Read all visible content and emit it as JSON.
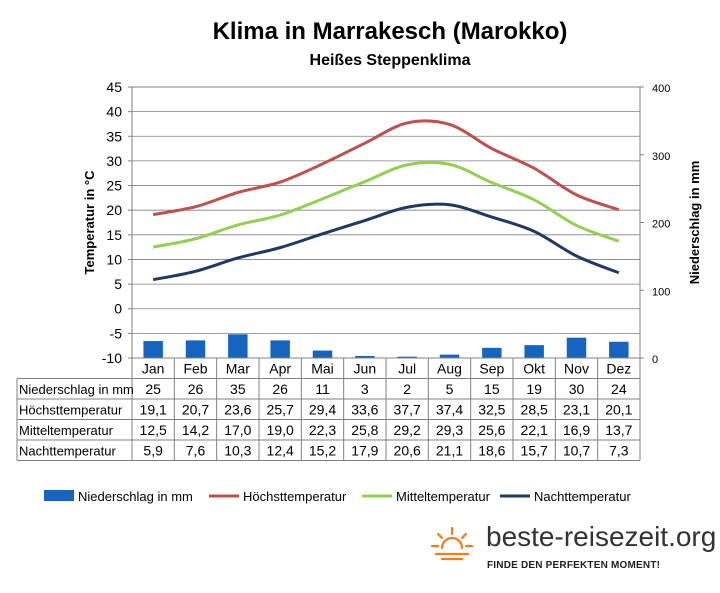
{
  "chart_data": {
    "type": "bar+line",
    "title": "Klima in Marrakesch (Marokko)",
    "subtitle": "Heißes Steppenklima",
    "categories": [
      "Jan",
      "Feb",
      "Mar",
      "Apr",
      "Mai",
      "Jun",
      "Jul",
      "Aug",
      "Sep",
      "Okt",
      "Nov",
      "Dez"
    ],
    "ylabel_left": "Temperatur in °C",
    "ylabel_right": "Niederschlag in mm",
    "yticks_left": [
      "45",
      "40",
      "35",
      "30",
      "25",
      "20",
      "15",
      "10",
      "5",
      "0",
      "-5",
      "-10"
    ],
    "yticks_right": [
      "400",
      "300",
      "200",
      "100",
      "0"
    ],
    "ylim_left": [
      -10,
      45
    ],
    "ylim_right": [
      0,
      400
    ],
    "grid": true,
    "legend_position": "bottom",
    "series": [
      {
        "name": "Niederschlag in mm",
        "kind": "bar",
        "axis": "right",
        "color": "#1565C0",
        "values": [
          25,
          26,
          35,
          26,
          11,
          3,
          2,
          5,
          15,
          19,
          30,
          24
        ],
        "labels": [
          "25",
          "26",
          "35",
          "26",
          "11",
          "3",
          "2",
          "5",
          "15",
          "19",
          "30",
          "24"
        ]
      },
      {
        "name": "Höchsttemperatur",
        "kind": "line",
        "axis": "left",
        "color": "#C0504D",
        "values": [
          19.1,
          20.7,
          23.6,
          25.7,
          29.4,
          33.6,
          37.7,
          37.4,
          32.5,
          28.5,
          23.1,
          20.1
        ],
        "labels": [
          "19,1",
          "20,7",
          "23,6",
          "25,7",
          "29,4",
          "33,6",
          "37,7",
          "37,4",
          "32,5",
          "28,5",
          "23,1",
          "20,1"
        ]
      },
      {
        "name": "Mitteltemperatur",
        "kind": "line",
        "axis": "left",
        "color": "#92D050",
        "values": [
          12.5,
          14.2,
          17.0,
          19.0,
          22.3,
          25.8,
          29.2,
          29.3,
          25.6,
          22.1,
          16.9,
          13.7
        ],
        "labels": [
          "12,5",
          "14,2",
          "17,0",
          "19,0",
          "22,3",
          "25,8",
          "29,2",
          "29,3",
          "25,6",
          "22,1",
          "16,9",
          "13,7"
        ]
      },
      {
        "name": "Nachttemperatur",
        "kind": "line",
        "axis": "left",
        "color": "#1F3864",
        "values": [
          5.9,
          7.6,
          10.3,
          12.4,
          15.2,
          17.9,
          20.6,
          21.1,
          18.6,
          15.7,
          10.7,
          7.3
        ],
        "labels": [
          "5,9",
          "7,6",
          "10,3",
          "12,4",
          "15,2",
          "17,9",
          "20,6",
          "21,1",
          "18,6",
          "15,7",
          "10,7",
          "7,3"
        ]
      }
    ]
  },
  "branding": {
    "site": "beste-reisezeit.org",
    "slogan": "FINDE DEN PERFEKTEN MOMENT!",
    "logo_color": "#F07C1E"
  }
}
